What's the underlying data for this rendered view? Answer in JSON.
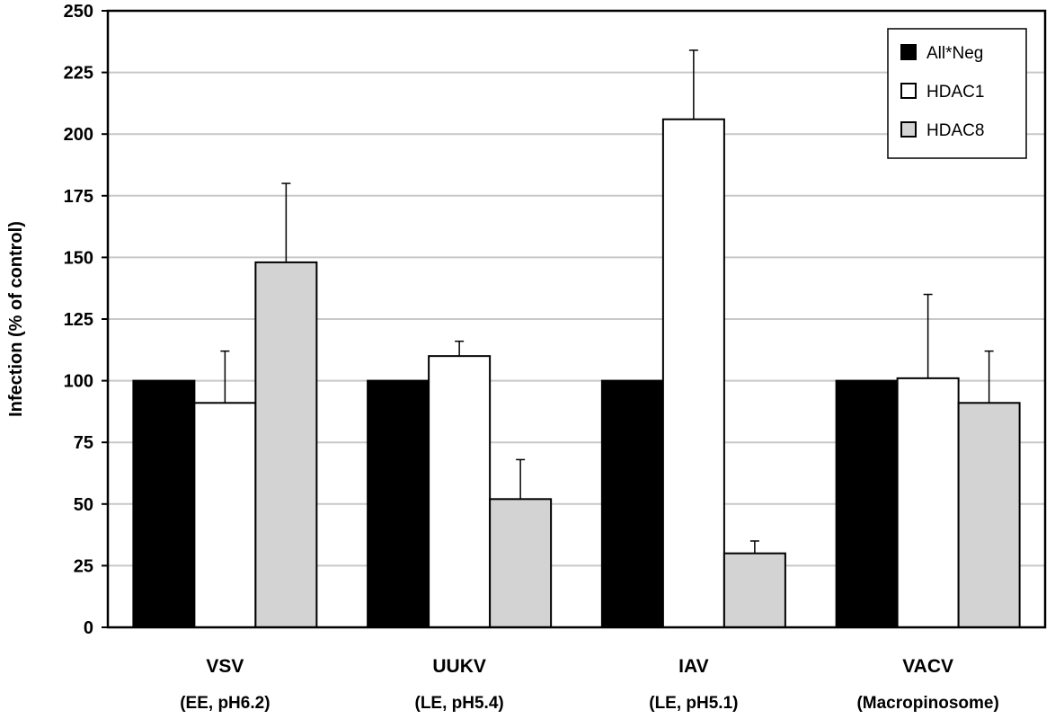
{
  "chart_data": {
    "type": "bar",
    "title": "",
    "xlabel": "",
    "ylabel": "Infection (% of control)",
    "ylim": [
      0,
      250
    ],
    "yticks": [
      0,
      25,
      50,
      75,
      100,
      125,
      150,
      175,
      200,
      225,
      250
    ],
    "grid": true,
    "legend_position": "top-right",
    "categories": [
      "VSV",
      "UUKV",
      "IAV",
      "VACV"
    ],
    "subcategories": [
      "(EE, pH6.2)",
      "(LE, pH5.4)",
      "(LE, pH5.1)",
      "(Macropinosome)"
    ],
    "series": [
      {
        "name": "All*Neg",
        "color": "#000000",
        "values": [
          100,
          100,
          100,
          100
        ],
        "errors": [
          null,
          null,
          null,
          null
        ]
      },
      {
        "name": "HDAC1",
        "color": "#ffffff",
        "values": [
          91,
          110,
          206,
          101
        ],
        "errors": [
          21,
          6,
          28,
          34
        ]
      },
      {
        "name": "HDAC8",
        "color": "#d3d3d3",
        "values": [
          148,
          52,
          30,
          91
        ],
        "errors": [
          32,
          16,
          5,
          21
        ]
      }
    ]
  }
}
